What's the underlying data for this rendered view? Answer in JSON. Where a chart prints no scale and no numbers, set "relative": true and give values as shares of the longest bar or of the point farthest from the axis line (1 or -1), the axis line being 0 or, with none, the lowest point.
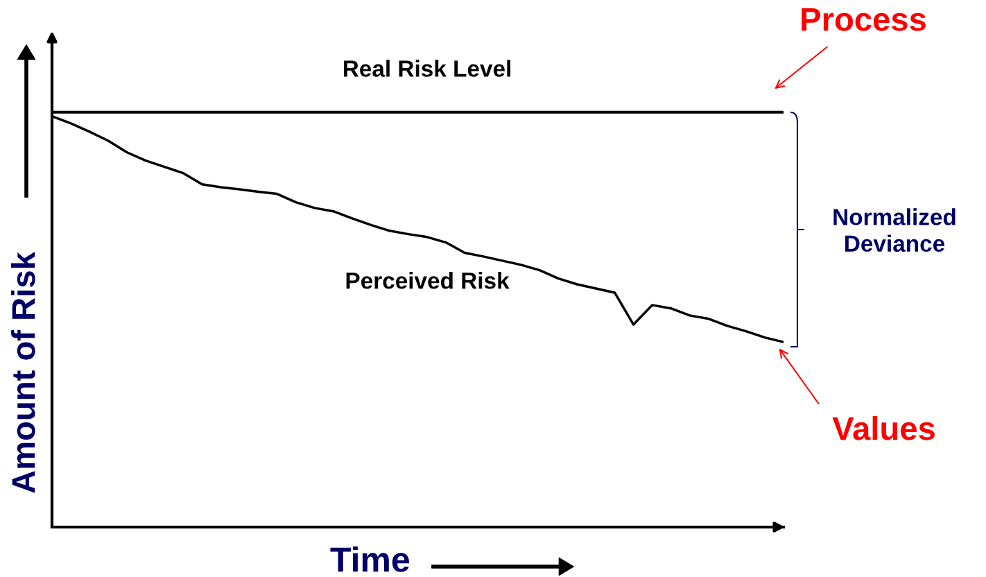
{
  "chart_data": {
    "type": "line",
    "relative": true,
    "xlabel": "Time",
    "ylabel": "Amount of Risk",
    "categories": [
      null,
      null,
      null,
      null,
      null,
      null,
      null,
      null,
      null,
      null,
      null,
      null,
      null,
      null,
      null,
      null,
      null,
      null,
      null,
      null,
      null,
      null,
      null,
      null,
      null,
      null,
      null,
      null,
      null,
      null,
      null,
      null,
      null,
      null,
      null,
      null,
      null,
      null,
      null,
      null
    ],
    "series": [
      {
        "name": "Real Risk Level",
        "color": "#000000",
        "values": [
          1,
          1,
          1,
          1,
          1,
          1,
          1,
          1,
          1,
          1,
          1,
          1,
          1,
          1,
          1,
          1,
          1,
          1,
          1,
          1,
          1,
          1,
          1,
          1,
          1,
          1,
          1,
          1,
          1,
          1,
          1,
          1,
          1,
          1,
          1,
          1,
          1,
          1,
          1,
          1
        ]
      },
      {
        "name": "Perceived Risk",
        "color": "#000000",
        "values": [
          0.99,
          0.973,
          0.953,
          0.931,
          0.903,
          0.883,
          0.868,
          0.853,
          0.826,
          0.819,
          0.814,
          0.808,
          0.803,
          0.783,
          0.769,
          0.761,
          0.744,
          0.728,
          0.714,
          0.706,
          0.699,
          0.686,
          0.661,
          0.652,
          0.642,
          0.632,
          0.619,
          0.599,
          0.585,
          0.575,
          0.565,
          0.488,
          0.535,
          0.527,
          0.51,
          0.502,
          0.485,
          0.472,
          0.457,
          0.446
        ]
      }
    ],
    "annotations": [
      "Process",
      "Values",
      "Normalized\nDeviance"
    ],
    "legend": false,
    "marker": "none",
    "line_style": "solid"
  }
}
